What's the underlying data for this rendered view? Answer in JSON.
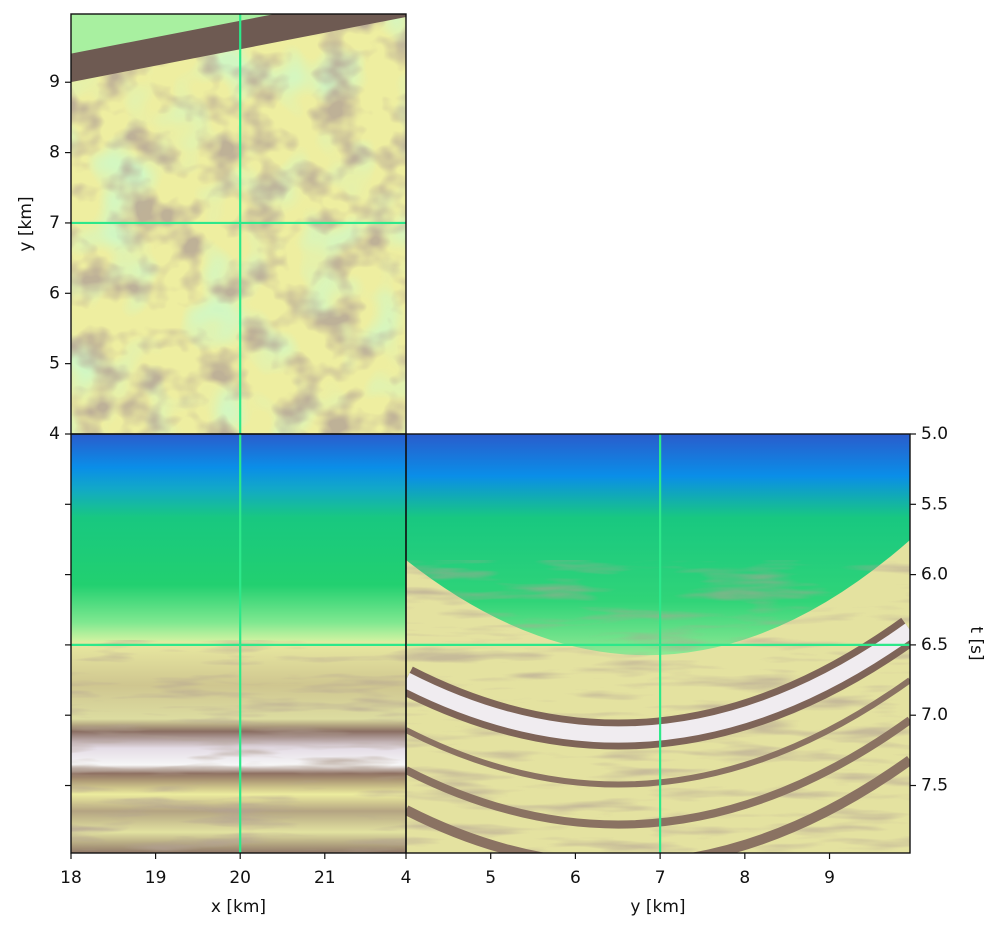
{
  "chart_data": [
    {
      "type": "image",
      "ylabel": "y [km]",
      "xlim": [
        18,
        21.96
      ],
      "ylim": [
        4,
        9.97
      ],
      "yticks": [
        4,
        5,
        6,
        7,
        8,
        9
      ],
      "crosshair": {
        "x": 20,
        "y": 7
      },
      "crosshair_color": "#2de88a"
    },
    {
      "type": "image",
      "xlabel": "x [km]",
      "xlim": [
        18,
        21.96
      ],
      "xticks": [
        18,
        19,
        20,
        21
      ],
      "ylim": [
        7.98,
        5
      ],
      "yticks": [
        5.5,
        6,
        6.5,
        7,
        7.5
      ],
      "crosshair": {
        "x": 20,
        "y": 6.5
      },
      "crosshair_color": "#2de88a"
    },
    {
      "type": "image",
      "xlabel": "y [km]",
      "ylabel": "t [s]",
      "y_axis_side": "right",
      "xlim": [
        4,
        9.95
      ],
      "xticks": [
        4,
        5,
        6,
        7,
        8,
        9
      ],
      "ylim": [
        7.98,
        5
      ],
      "yticks": [
        {
          "value": 5,
          "label": "5.0"
        },
        5.5,
        {
          "value": 6,
          "label": "6.0"
        },
        6.5,
        {
          "value": 7,
          "label": "7.0"
        },
        7.5
      ],
      "crosshair": {
        "x": 7,
        "y": 6.5
      },
      "crosshair_color": "#2de88a"
    }
  ]
}
